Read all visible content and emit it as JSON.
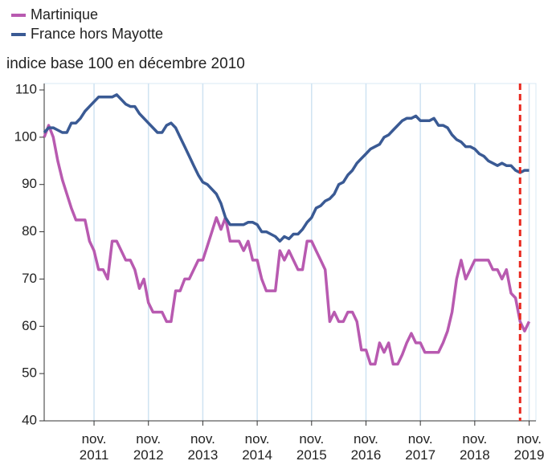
{
  "chart_data": {
    "type": "line",
    "subtitle": "indice base 100 en décembre 2010",
    "categories": [
      null,
      null,
      null,
      null,
      null,
      null,
      null,
      null,
      null,
      null,
      null,
      "nov. 2011",
      null,
      null,
      null,
      null,
      null,
      null,
      null,
      null,
      null,
      null,
      null,
      "nov. 2012",
      null,
      null,
      null,
      null,
      null,
      null,
      null,
      null,
      null,
      null,
      null,
      "nov. 2013",
      null,
      null,
      null,
      null,
      null,
      null,
      null,
      null,
      null,
      null,
      null,
      "nov. 2014",
      null,
      null,
      null,
      null,
      null,
      null,
      null,
      null,
      null,
      null,
      null,
      "nov. 2015",
      null,
      null,
      null,
      null,
      null,
      null,
      null,
      null,
      null,
      null,
      null,
      "nov. 2016",
      null,
      null,
      null,
      null,
      null,
      null,
      null,
      null,
      null,
      null,
      null,
      "nov. 2017",
      null,
      null,
      null,
      null,
      null,
      null,
      null,
      null,
      null,
      null,
      null,
      "nov. 2018",
      null,
      null,
      null,
      null,
      null,
      null,
      null,
      null,
      null,
      null,
      null,
      "nov. 2019"
    ],
    "series": [
      {
        "name": "Martinique",
        "color": "#b85ab0",
        "values": [
          100,
          102.5,
          100,
          95,
          91,
          88,
          85,
          82.5,
          82.5,
          82.5,
          78,
          76,
          72,
          72,
          70,
          78,
          78,
          76,
          74,
          74,
          72,
          68,
          70,
          65,
          63,
          63,
          63,
          61,
          61,
          67.5,
          67.5,
          70,
          70,
          72,
          74,
          74,
          77,
          80,
          83,
          80.5,
          83,
          78,
          78,
          78,
          76,
          78,
          74,
          74,
          70,
          67.5,
          67.5,
          67.5,
          76,
          74,
          76,
          74,
          72,
          72,
          78,
          78,
          76,
          74,
          72,
          61,
          63,
          61,
          61,
          63,
          63,
          61,
          55,
          55,
          52,
          52,
          56.5,
          54.5,
          56.5,
          52,
          52,
          54,
          56.5,
          58.5,
          56.5,
          56.5,
          54.5,
          54.5,
          54.5,
          54.5,
          56.5,
          59,
          63,
          70,
          74,
          70,
          72,
          74,
          74,
          74,
          74,
          72,
          72,
          70,
          72,
          67,
          66,
          61,
          59,
          61
        ]
      },
      {
        "name": "France hors Mayotte",
        "color": "#3a5a94",
        "values": [
          101,
          102,
          102,
          101.5,
          101,
          101,
          103,
          103,
          104,
          105.5,
          106.5,
          107.5,
          108.5,
          108.5,
          108.5,
          108.5,
          109,
          108,
          107,
          106.5,
          106.5,
          105,
          104,
          103,
          102,
          101,
          101,
          102.5,
          103,
          102,
          100,
          98,
          96,
          94,
          92,
          90.5,
          90,
          89,
          88,
          86,
          83,
          81.5,
          81.5,
          81.5,
          81.5,
          82,
          82,
          81.5,
          80,
          80,
          79.5,
          79,
          78,
          79,
          78.5,
          79.5,
          79.5,
          80.5,
          82,
          83,
          85,
          85.5,
          86.5,
          87,
          88,
          90,
          90.5,
          92,
          93,
          94.5,
          95.5,
          96.5,
          97.5,
          98,
          98.5,
          100,
          100.5,
          101.5,
          102.5,
          103.5,
          104,
          104,
          104.5,
          103.5,
          103.5,
          103.5,
          104,
          102.5,
          102.5,
          102,
          100.5,
          99.5,
          99,
          98,
          98,
          97.5,
          96.5,
          96,
          95,
          94.5,
          94,
          94.5,
          94,
          94,
          93,
          92.5,
          93,
          93
        ]
      }
    ],
    "ylim": [
      40,
      110
    ],
    "yticks": [
      40,
      50,
      60,
      70,
      80,
      90,
      100,
      110
    ],
    "grid": true,
    "marker_line": {
      "index": 105,
      "color": "#e8281e"
    }
  }
}
